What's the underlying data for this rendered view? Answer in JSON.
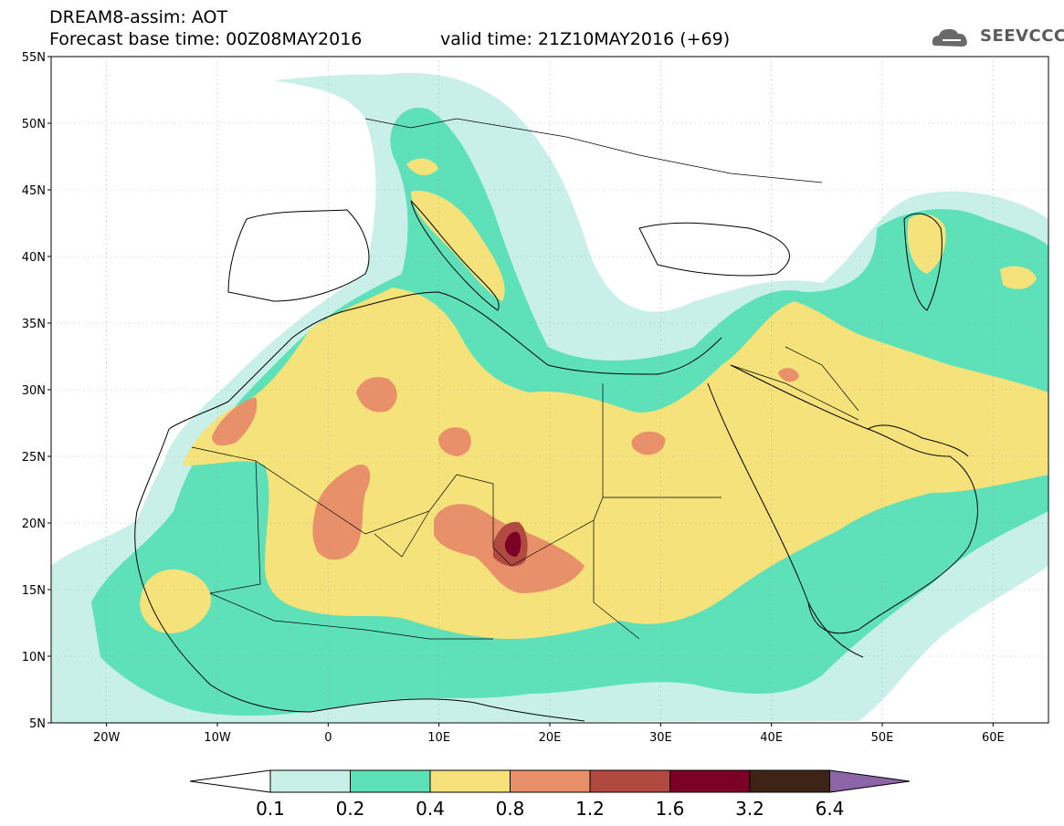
{
  "header": {
    "title": "DREAM8-assim: AOT",
    "base_time": "Forecast base time: 00Z08MAY2016",
    "valid_time": "valid time: 21Z10MAY2016 (+69)",
    "logo_text": "SEEVCCC"
  },
  "axes": {
    "lat_labels": [
      "55N",
      "50N",
      "45N",
      "40N",
      "35N",
      "30N",
      "25N",
      "20N",
      "15N",
      "10N",
      "5N"
    ],
    "lon_labels": [
      "20W",
      "10W",
      "0",
      "10E",
      "20E",
      "30E",
      "40E",
      "50E",
      "60E"
    ]
  },
  "legend": {
    "levels": [
      "0.1",
      "0.2",
      "0.4",
      "0.8",
      "1.2",
      "1.6",
      "3.2",
      "6.4"
    ],
    "colors": [
      "#c8f0e8",
      "#5ee0b8",
      "#f5e27a",
      "#e8906a",
      "#b04a40",
      "#7a0026",
      "#3d2416",
      "#8c64a8"
    ]
  }
}
